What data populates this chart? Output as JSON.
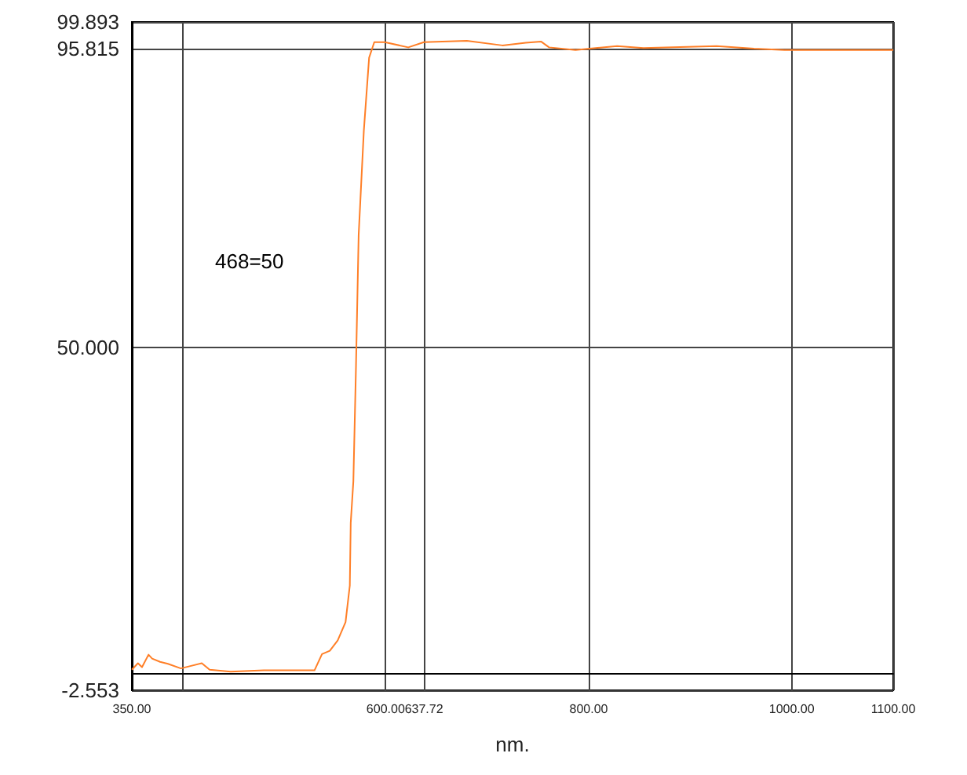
{
  "chart_data": {
    "type": "line",
    "xlabel": "nm.",
    "annotations": [
      "468=50"
    ],
    "grid": true,
    "marker": "none",
    "line_style": "solid",
    "xlim": [
      350,
      1100
    ],
    "ylim": [
      -2.553,
      99.893
    ],
    "xticks": [
      {
        "value": 350,
        "label": "350.00"
      },
      {
        "value": 400,
        "label": null
      },
      {
        "value": 600,
        "label": "600.00"
      },
      {
        "value": 637.72,
        "label": "637.72"
      },
      {
        "value": 800,
        "label": "800.00"
      },
      {
        "value": 1000,
        "label": "1000.00"
      },
      {
        "value": 1100,
        "label": "1100.00"
      }
    ],
    "yticks": [
      {
        "value": -2.553,
        "label": "-2.553"
      },
      {
        "value": 0,
        "label": null
      },
      {
        "value": 50,
        "label": "50.000"
      },
      {
        "value": 95.815,
        "label": "95.815"
      },
      {
        "value": 99.893,
        "label": "99.893"
      }
    ],
    "series": [
      {
        "color": "#ff7f27",
        "x": [
          350,
          356,
          360,
          366.4,
          370,
          377.8,
          385.5,
          398.3,
          418.9,
          426.6,
          447.3,
          480,
          529.9,
          537.3,
          545,
          552.8,
          560.5,
          564.7,
          565.6,
          568.2,
          570.8,
          573.4,
          578.5,
          583.7,
          588.8,
          599.1,
          622.3,
          637.7,
          680,
          715,
          738,
          753,
          761,
          787,
          828,
          854,
          926,
          963,
          993,
          1100
        ],
        "values": [
          0.6,
          1.6,
          1,
          2.9,
          2.3,
          1.8,
          1.5,
          0.8,
          1.6,
          0.6,
          0.3,
          0.5,
          0.5,
          3,
          3.5,
          5.1,
          7.9,
          13.5,
          23.1,
          29.5,
          47.2,
          67.2,
          83.2,
          94.4,
          96.8,
          96.8,
          96,
          96.8,
          97,
          96.3,
          96.7,
          96.9,
          96,
          95.6,
          96.2,
          95.9,
          96.2,
          95.8,
          95.6,
          95.6
        ]
      }
    ]
  }
}
